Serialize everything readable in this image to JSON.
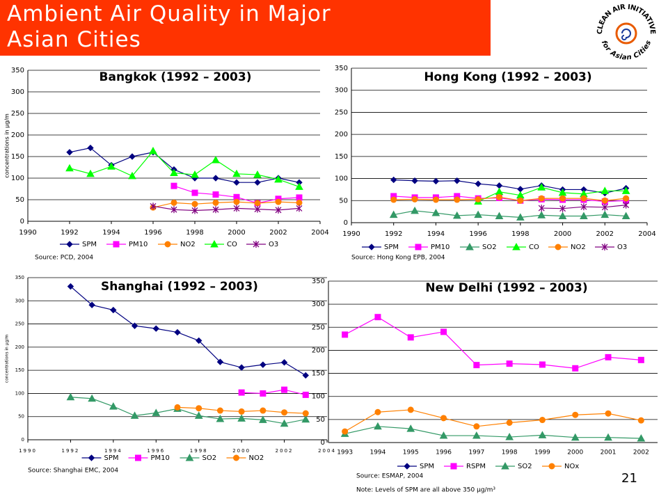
{
  "title": "Ambient Air Quality in Major Asian Cities",
  "logo": {
    "top": "CLEAN AIR INITIATIVE",
    "bottom": "for Asian Cities"
  },
  "page_number": "21",
  "chart_data": [
    {
      "type": "line",
      "title": "Bangkok (1992 – 2003)",
      "y_label": "concentrations in µg/m",
      "x": [
        1992,
        1993,
        1994,
        1995,
        1996,
        1997,
        1998,
        1999,
        2000,
        2001,
        2002,
        2003
      ],
      "xlim": [
        1990,
        2004
      ],
      "xticks": [
        1990,
        1992,
        1994,
        1996,
        1998,
        2000,
        2002,
        2004
      ],
      "ylim": [
        0,
        350
      ],
      "yticks": [
        0,
        50,
        100,
        150,
        200,
        250,
        300,
        350
      ],
      "grid": true,
      "series": [
        {
          "name": "SPM",
          "color": "#000080",
          "marker": "diamond",
          "values": [
            160,
            170,
            130,
            150,
            160,
            120,
            100,
            100,
            90,
            90,
            100,
            90
          ]
        },
        {
          "name": "PM10",
          "color": "#ff00ff",
          "marker": "square",
          "values": [
            null,
            null,
            null,
            null,
            null,
            82,
            66,
            62,
            56,
            42,
            52,
            55
          ]
        },
        {
          "name": "NO2",
          "color": "#ff8000",
          "marker": "circle",
          "values": [
            null,
            null,
            null,
            null,
            32,
            43,
            40,
            43,
            45,
            42,
            45,
            43
          ]
        },
        {
          "name": "CO",
          "color": "#00ff00",
          "marker": "triangle",
          "values": [
            123,
            110,
            127,
            105,
            163,
            112,
            108,
            142,
            110,
            108,
            97,
            80
          ]
        },
        {
          "name": "O3",
          "color": "#800080",
          "marker": "star",
          "values": [
            null,
            null,
            null,
            null,
            35,
            27,
            25,
            27,
            30,
            28,
            26,
            30
          ]
        }
      ],
      "source": "Source: PCD, 2004"
    },
    {
      "type": "line",
      "title": "Hong Kong (1992 – 2003)",
      "x": [
        1992,
        1993,
        1994,
        1995,
        1996,
        1997,
        1998,
        1999,
        2000,
        2001,
        2002,
        2003
      ],
      "xlim": [
        1990,
        2004
      ],
      "xticks": [
        1990,
        1992,
        1994,
        1996,
        1998,
        2000,
        2002,
        2004
      ],
      "ylim": [
        0,
        350
      ],
      "yticks": [
        0,
        50,
        100,
        150,
        200,
        250,
        300,
        350
      ],
      "grid": true,
      "series": [
        {
          "name": "SPM",
          "color": "#000080",
          "marker": "diamond",
          "values": [
            97,
            95,
            94,
            95,
            88,
            84,
            76,
            84,
            75,
            75,
            67,
            78
          ]
        },
        {
          "name": "PM10",
          "color": "#ff00ff",
          "marker": "square",
          "values": [
            60,
            57,
            57,
            60,
            55,
            56,
            50,
            53,
            52,
            52,
            48,
            50
          ]
        },
        {
          "name": "SO2",
          "color": "#339966",
          "marker": "triangle",
          "values": [
            18,
            27,
            22,
            16,
            18,
            15,
            12,
            17,
            15,
            15,
            18,
            15
          ]
        },
        {
          "name": "CO",
          "color": "#00ff00",
          "marker": "triangle",
          "values": [
            null,
            null,
            null,
            null,
            48,
            70,
            62,
            80,
            68,
            65,
            72,
            72
          ]
        },
        {
          "name": "NO2",
          "color": "#ff8000",
          "marker": "circle",
          "values": [
            52,
            53,
            52,
            52,
            53,
            58,
            50,
            55,
            55,
            55,
            50,
            55
          ]
        },
        {
          "name": "O3",
          "color": "#800080",
          "marker": "star",
          "values": [
            null,
            null,
            null,
            null,
            null,
            null,
            null,
            33,
            32,
            36,
            35,
            40
          ]
        }
      ],
      "source": "Source: Hong Kong EPB, 2004"
    },
    {
      "type": "line",
      "title": "Shanghai (1992 – 2003)",
      "y_label": "concentrations in µg/m",
      "x": [
        1992,
        1993,
        1994,
        1995,
        1996,
        1997,
        1998,
        1999,
        2000,
        2001,
        2002,
        2003
      ],
      "xlim": [
        1990,
        2004
      ],
      "xticks": [
        1990,
        1992,
        1994,
        1996,
        1998,
        2000,
        2002,
        2004
      ],
      "ylim": [
        0,
        350
      ],
      "yticks": [
        0,
        50,
        100,
        150,
        200,
        250,
        300,
        350
      ],
      "grid": true,
      "series": [
        {
          "name": "SPM",
          "color": "#000080",
          "marker": "diamond",
          "values": [
            331,
            291,
            280,
            246,
            240,
            232,
            214,
            168,
            156,
            162,
            167,
            139
          ]
        },
        {
          "name": "PM10",
          "color": "#ff00ff",
          "marker": "square",
          "values": [
            null,
            null,
            null,
            null,
            null,
            null,
            null,
            null,
            102,
            100,
            108,
            97
          ]
        },
        {
          "name": "SO2",
          "color": "#339966",
          "marker": "triangle",
          "values": [
            92,
            89,
            72,
            52,
            58,
            67,
            52,
            45,
            46,
            43,
            35,
            44
          ]
        },
        {
          "name": "NO2",
          "color": "#ff8000",
          "marker": "circle",
          "values": [
            null,
            null,
            null,
            null,
            null,
            70,
            68,
            63,
            61,
            63,
            59,
            57
          ]
        }
      ],
      "source": "Source: Shanghai EMC, 2004"
    },
    {
      "type": "line",
      "title": "New Delhi (1992 – 2003)",
      "categories": [
        "1993",
        "1994",
        "1995",
        "1996",
        "1997",
        "1998",
        "1999",
        "2000",
        "2001",
        "2002"
      ],
      "ylim": [
        0,
        350
      ],
      "yticks": [
        0,
        50,
        100,
        150,
        200,
        250,
        300,
        350
      ],
      "grid": true,
      "series": [
        {
          "name": "SPM",
          "color": "#000080",
          "marker": "diamond",
          "values": [
            null,
            null,
            null,
            null,
            null,
            null,
            null,
            null,
            null,
            null
          ]
        },
        {
          "name": "RSPM",
          "color": "#ff00ff",
          "marker": "square",
          "values": [
            234,
            272,
            228,
            240,
            168,
            171,
            169,
            161,
            185,
            179
          ]
        },
        {
          "name": "SO2",
          "color": "#339966",
          "marker": "triangle",
          "values": [
            19,
            35,
            30,
            15,
            15,
            12,
            16,
            11,
            11,
            9
          ]
        },
        {
          "name": "NOx",
          "color": "#ff8000",
          "marker": "circle",
          "values": [
            24,
            66,
            71,
            53,
            35,
            43,
            49,
            60,
            63,
            48
          ]
        }
      ],
      "source": "Source: ESMAP, 2004",
      "note": "Note: Levels of SPM are all above 350 µg/m³"
    }
  ]
}
